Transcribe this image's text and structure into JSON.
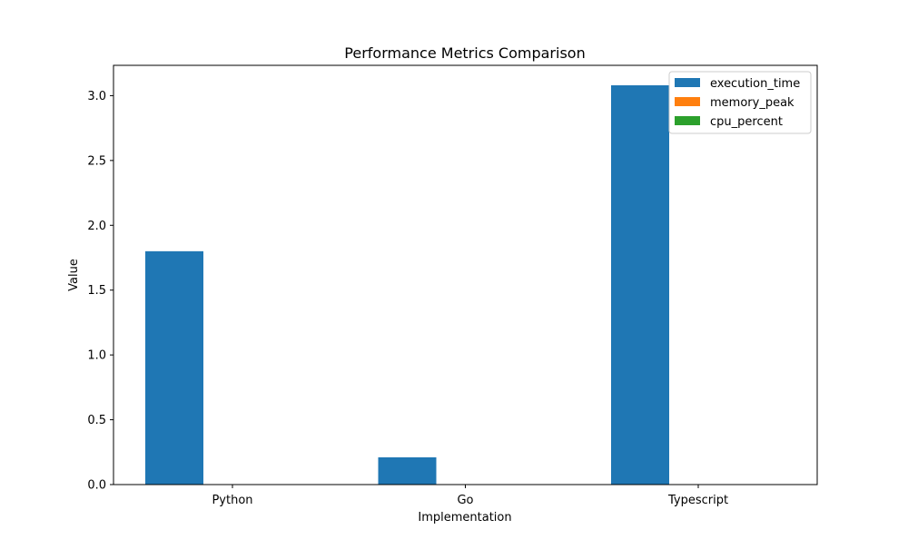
{
  "chart_data": {
    "type": "bar",
    "title": "Performance Metrics Comparison",
    "xlabel": "Implementation",
    "ylabel": "Value",
    "categories": [
      "Python",
      "Go",
      "Typescript"
    ],
    "series": [
      {
        "name": "execution_time",
        "values": [
          1.8,
          0.21,
          3.08
        ],
        "color": "#1f77b4"
      },
      {
        "name": "memory_peak",
        "values": [
          0,
          0,
          0
        ],
        "color": "#ff7f0e"
      },
      {
        "name": "cpu_percent",
        "values": [
          0,
          0,
          0
        ],
        "color": "#2ca02c"
      }
    ],
    "ylim": [
      0,
      3.234
    ],
    "yticks": [
      "0.0",
      "0.5",
      "1.0",
      "1.5",
      "2.0",
      "2.5",
      "3.0"
    ],
    "grid": false,
    "legend": "top-right"
  }
}
